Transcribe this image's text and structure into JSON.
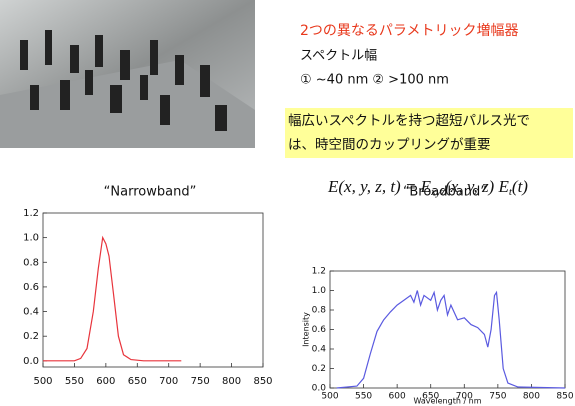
{
  "slide": {
    "heading": "2つの異なるパラメトリック増幅器",
    "subheading": "スペクトル幅",
    "widths": "① ~40 nm ② >100 nm",
    "note_lines": [
      "幅広いスペクトルを持つ超短パルス光で",
      "は、時空間のカップリングが重要"
    ],
    "equation": {
      "left": "E(x, y, z, t) = E",
      "sub1": "xyz",
      "middle": "(x, y, z) E",
      "sub2": "t",
      "right": "(t)"
    }
  },
  "chart_data": [
    {
      "type": "line",
      "title": "“Narrowband”",
      "x": [
        500,
        550,
        560,
        570,
        580,
        588,
        595,
        600,
        605,
        612,
        620,
        628,
        640,
        660,
        720
      ],
      "series": [
        {
          "color": "#e8343c",
          "values": [
            0,
            0,
            0.02,
            0.1,
            0.4,
            0.75,
            1.0,
            0.95,
            0.85,
            0.55,
            0.2,
            0.05,
            0.01,
            0,
            0
          ]
        }
      ],
      "xlim": [
        500,
        850
      ],
      "xticks": [
        500,
        550,
        600,
        650,
        700,
        750,
        800,
        850
      ],
      "ylim": [
        -0.05,
        1.2
      ],
      "yticks": [
        {
          "value": 0,
          "label": "0.0"
        },
        0.2,
        0.4,
        0.6,
        0.8,
        {
          "value": 1,
          "label": "1.0"
        },
        1.2
      ]
    },
    {
      "type": "line",
      "title": "“Broadband”",
      "xlabel": "Wavelength / nm",
      "ylabel": "Intensity",
      "x": [
        510,
        540,
        550,
        560,
        570,
        580,
        590,
        600,
        610,
        620,
        625,
        630,
        635,
        640,
        650,
        655,
        660,
        665,
        670,
        675,
        680,
        690,
        700,
        710,
        720,
        730,
        735,
        740,
        745,
        748,
        752,
        758,
        765,
        780,
        850
      ],
      "series": [
        {
          "color": "#5a5ae0",
          "values": [
            0,
            0.02,
            0.1,
            0.35,
            0.58,
            0.7,
            0.78,
            0.85,
            0.9,
            0.95,
            0.88,
            1.0,
            0.85,
            0.95,
            0.9,
            0.98,
            0.8,
            0.9,
            0.95,
            0.75,
            0.85,
            0.7,
            0.72,
            0.65,
            0.62,
            0.55,
            0.42,
            0.6,
            0.95,
            0.98,
            0.7,
            0.2,
            0.05,
            0.01,
            0
          ]
        }
      ],
      "xlim": [
        500,
        850
      ],
      "xticks": [
        500,
        550,
        600,
        650,
        700,
        750,
        800,
        850
      ],
      "ylim": [
        0,
        1.2
      ],
      "yticks": [
        {
          "value": 0,
          "label": "0.0"
        },
        0.2,
        0.4,
        0.6,
        0.8,
        {
          "value": 1,
          "label": "1.0"
        },
        1.2
      ]
    }
  ]
}
